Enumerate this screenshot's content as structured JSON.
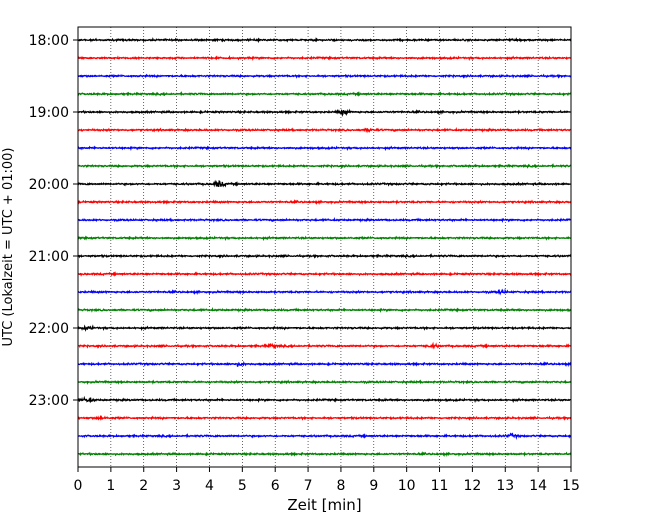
{
  "chart_data": {
    "type": "line",
    "title": "",
    "xlabel": "Zeit  [min]",
    "ylabel": "UTC (Lokalzeit = UTC + 01:00)",
    "xlim": [
      0,
      15
    ],
    "x_ticks": [
      "0",
      "1",
      "2",
      "3",
      "4",
      "5",
      "6",
      "7",
      "8",
      "9",
      "10",
      "11",
      "12",
      "13",
      "14",
      "15"
    ],
    "y_tick_labels": [
      "18:00",
      "19:00",
      "20:00",
      "21:00",
      "22:00",
      "23:00"
    ],
    "grid": "vertical dotted",
    "trace_colors": [
      "#000000",
      "#ff0000",
      "#0000ff",
      "#008000"
    ],
    "traces": [
      {
        "start": "18:00",
        "color": "#000000"
      },
      {
        "start": "18:15",
        "color": "#ff0000"
      },
      {
        "start": "18:30",
        "color": "#0000ff"
      },
      {
        "start": "18:45",
        "color": "#008000"
      },
      {
        "start": "19:00",
        "color": "#000000"
      },
      {
        "start": "19:15",
        "color": "#ff0000"
      },
      {
        "start": "19:30",
        "color": "#0000ff"
      },
      {
        "start": "19:45",
        "color": "#008000"
      },
      {
        "start": "20:00",
        "color": "#000000"
      },
      {
        "start": "20:15",
        "color": "#ff0000"
      },
      {
        "start": "20:30",
        "color": "#0000ff"
      },
      {
        "start": "20:45",
        "color": "#008000"
      },
      {
        "start": "21:00",
        "color": "#000000"
      },
      {
        "start": "21:15",
        "color": "#ff0000"
      },
      {
        "start": "21:30",
        "color": "#0000ff"
      },
      {
        "start": "21:45",
        "color": "#008000"
      },
      {
        "start": "22:00",
        "color": "#000000"
      },
      {
        "start": "22:15",
        "color": "#ff0000"
      },
      {
        "start": "22:30",
        "color": "#0000ff"
      },
      {
        "start": "22:45",
        "color": "#008000"
      },
      {
        "start": "23:00",
        "color": "#000000"
      },
      {
        "start": "23:15",
        "color": "#ff0000"
      },
      {
        "start": "23:30",
        "color": "#0000ff"
      },
      {
        "start": "23:45",
        "color": "#008000"
      }
    ]
  }
}
